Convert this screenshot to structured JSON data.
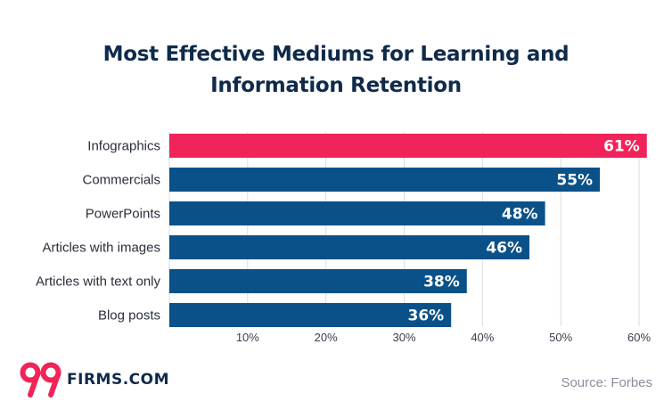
{
  "chart_data": {
    "type": "bar",
    "orientation": "horizontal",
    "title_lines": [
      "Most Effective Mediums for Learning and",
      "Information Retention"
    ],
    "categories": [
      "Infographics",
      "Commercials",
      "PowerPoints",
      "Articles with images",
      "Articles with text only",
      "Blog posts"
    ],
    "values": [
      61,
      55,
      48,
      46,
      38,
      36
    ],
    "value_labels": [
      "61%",
      "55%",
      "48%",
      "46%",
      "38%",
      "36%"
    ],
    "highlight_index": 0,
    "xlim": [
      0,
      60
    ],
    "xticks": [
      10,
      20,
      30,
      40,
      50,
      60
    ],
    "xtick_labels": [
      "10%",
      "20%",
      "30%",
      "40%",
      "50%",
      "60%"
    ],
    "colors": {
      "highlight": "#f0245a",
      "bar": "#0b5189",
      "grid": "#d9dde3",
      "axis_text": "#3a3f4a",
      "label_text": "#2a2f3a"
    }
  },
  "branding": {
    "logo_number": "99",
    "logo_text": "FIRMS.COM",
    "logo_color": "#f0245a"
  },
  "footer": {
    "source": "Source: Forbes"
  }
}
